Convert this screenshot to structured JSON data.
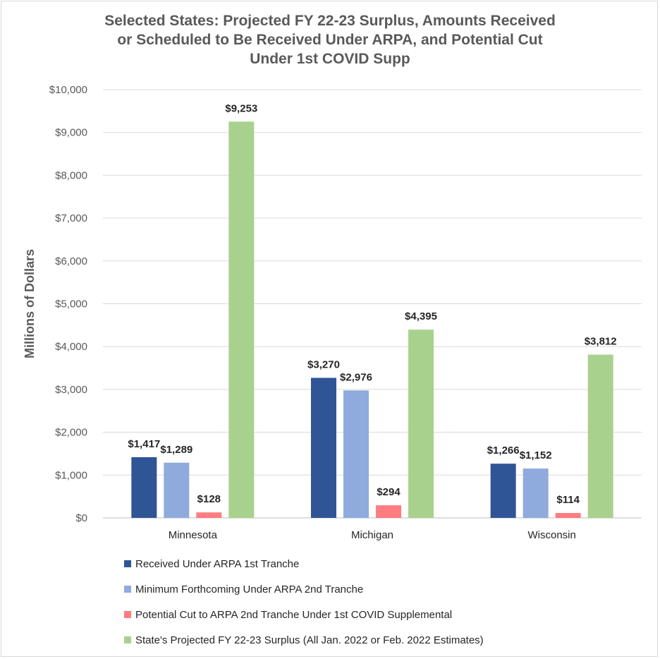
{
  "chart_data": {
    "type": "bar",
    "title_lines": [
      "Selected States: Projected FY 22-23 Surplus, Amounts Received",
      "or Scheduled to Be Received Under ARPA, and Potential Cut",
      "Under 1st COVID Supp"
    ],
    "ylabel": "Millions of Dollars",
    "xlabel": "",
    "ylim": [
      0,
      10000
    ],
    "yticks": [
      {
        "value": 0,
        "label": "$0"
      },
      {
        "value": 1000,
        "label": "$1,000"
      },
      {
        "value": 2000,
        "label": "$2,000"
      },
      {
        "value": 3000,
        "label": "$3,000"
      },
      {
        "value": 4000,
        "label": "$4,000"
      },
      {
        "value": 5000,
        "label": "$5,000"
      },
      {
        "value": 6000,
        "label": "$6,000"
      },
      {
        "value": 7000,
        "label": "$7,000"
      },
      {
        "value": 8000,
        "label": "$8,000"
      },
      {
        "value": 9000,
        "label": "$9,000"
      },
      {
        "value": 10000,
        "label": "$10,000"
      }
    ],
    "grid": true,
    "legend_position": "bottom",
    "categories": [
      "Minnesota",
      "Michigan",
      "Wisconsin"
    ],
    "series": [
      {
        "name": "Received Under ARPA 1st Tranche",
        "color": "#2f5597",
        "values": [
          1417,
          3270,
          1266
        ],
        "labels": [
          "$1,417",
          "$3,270",
          "$1,266"
        ]
      },
      {
        "name": "Minimum Forthcoming Under ARPA 2nd Tranche",
        "color": "#8faadc",
        "values": [
          1289,
          2976,
          1152
        ],
        "labels": [
          "$1,289",
          "$2,976",
          "$1,152"
        ]
      },
      {
        "name": "Potential Cut to ARPA 2nd Tranche Under 1st COVID Supplemental",
        "color": "#ff7c80",
        "values": [
          128,
          294,
          114
        ],
        "labels": [
          "$128",
          "$294",
          "$114"
        ]
      },
      {
        "name": "State's Projected FY 22-23 Surplus (All Jan. 2022 or Feb. 2022 Estimates)",
        "color": "#a9d18e",
        "values": [
          9253,
          4395,
          3812
        ],
        "labels": [
          "$9,253",
          "$4,395",
          "$3,812"
        ]
      }
    ]
  }
}
